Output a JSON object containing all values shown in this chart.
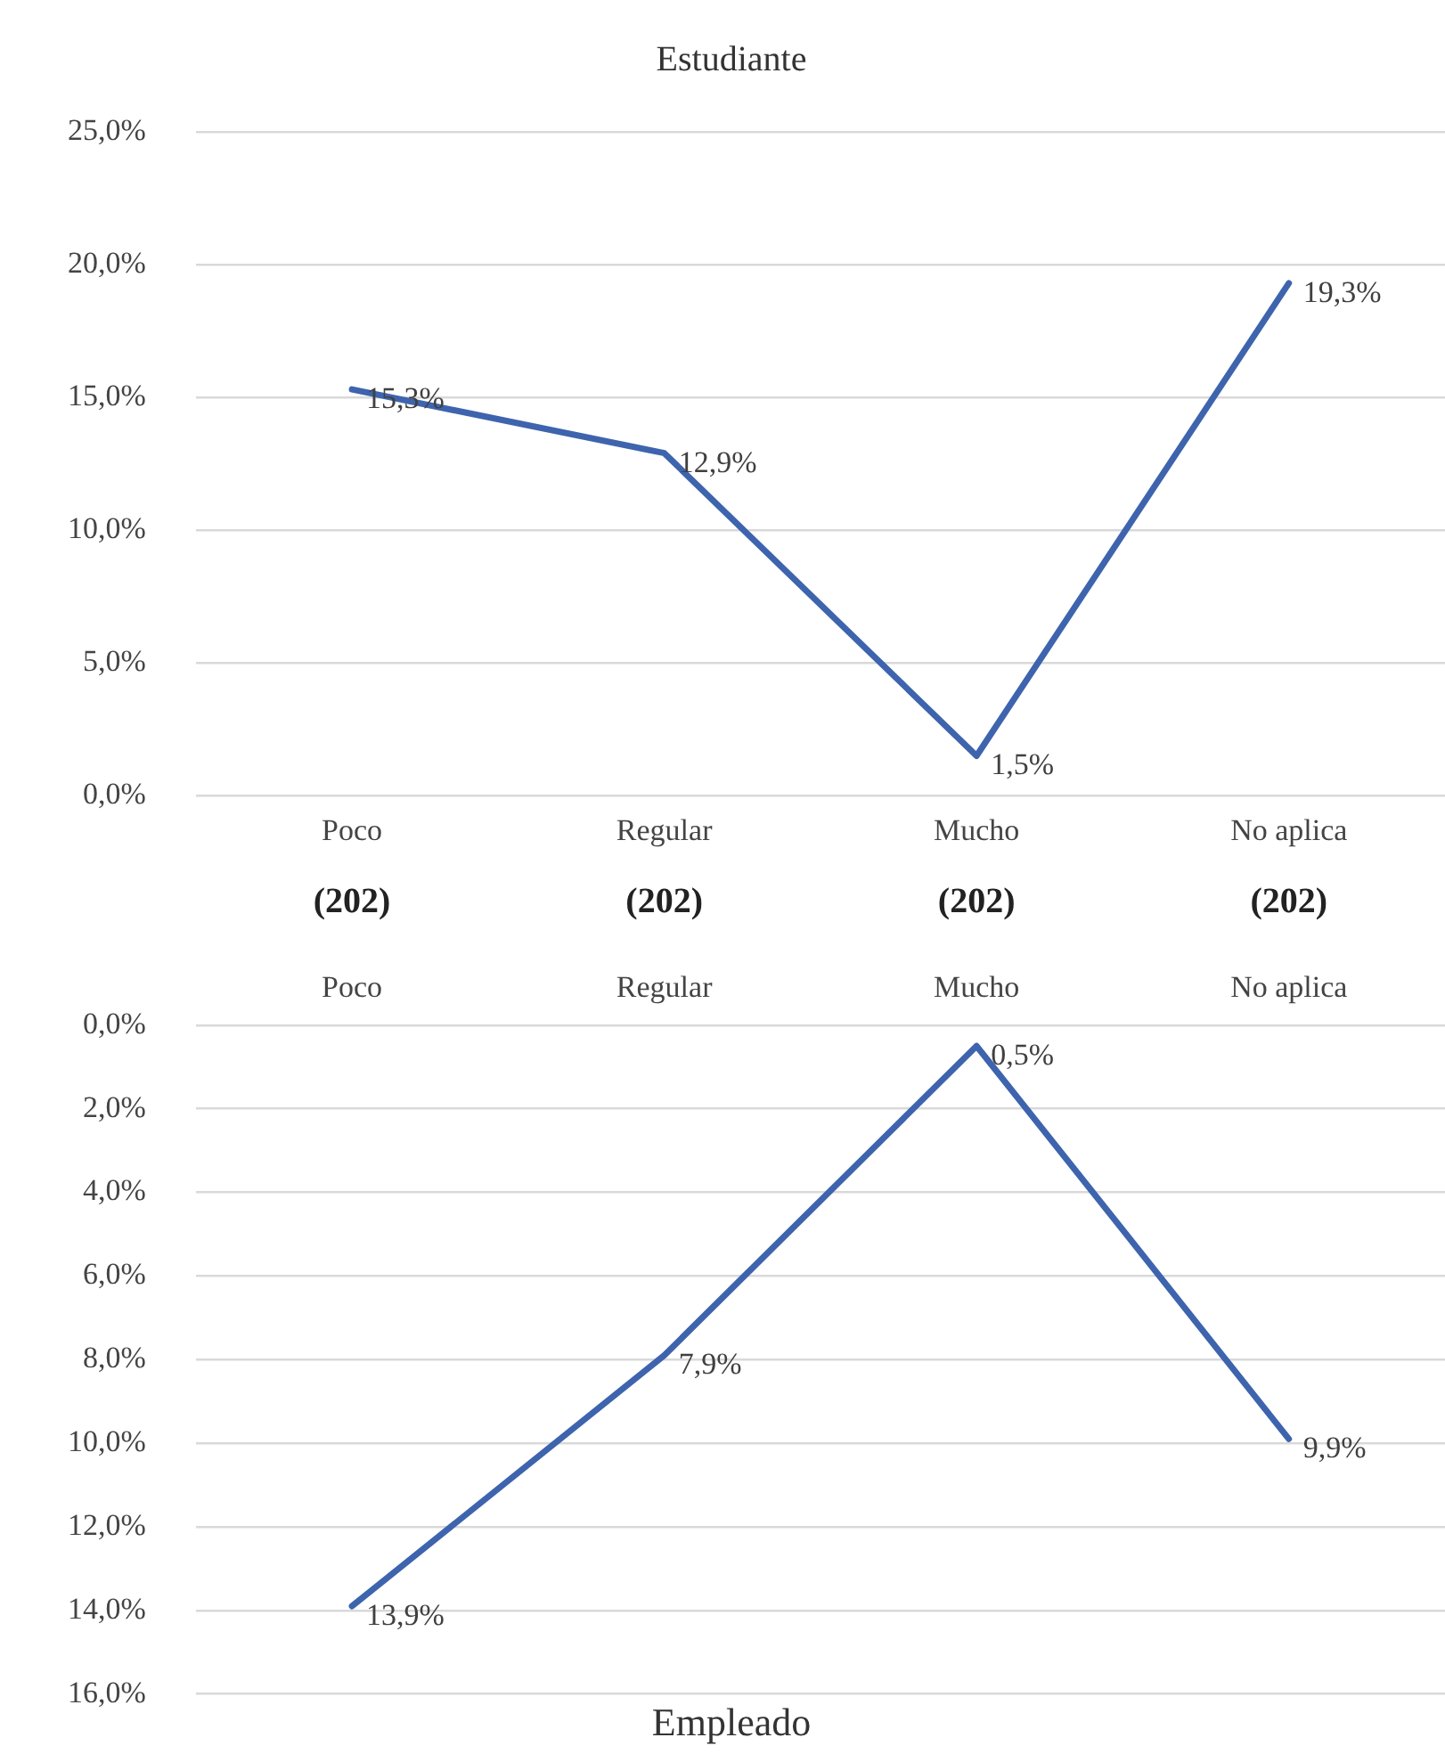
{
  "chart_data": [
    {
      "type": "line",
      "title": "Estudiante",
      "categories": [
        "Poco",
        "Regular",
        "Mucho",
        "No aplica"
      ],
      "color": "#3e64ae",
      "values": [
        15.3,
        12.9,
        1.5,
        19.3
      ],
      "value_labels": [
        "15,3%",
        "12,9%",
        "1,5%",
        "19,3%"
      ],
      "ylim": [
        0,
        25
      ],
      "yticks": [
        {
          "value": 0,
          "label": "0,0%"
        },
        {
          "value": 5,
          "label": "5,0%"
        },
        {
          "value": 10,
          "label": "10,0%"
        },
        {
          "value": 15,
          "label": "15,0%"
        },
        {
          "value": 20,
          "label": "20,0%"
        },
        {
          "value": 25,
          "label": "25,0%"
        }
      ],
      "grid": "y",
      "marker": "none",
      "line_style": "solid",
      "annotations": [
        "(202)",
        "(202)",
        "(202)",
        "(202)"
      ]
    },
    {
      "type": "line",
      "title": "Empleado",
      "categories": [
        "Poco",
        "Regular",
        "Mucho",
        "No aplica"
      ],
      "color": "#3e64ae",
      "values": [
        13.9,
        7.9,
        0.5,
        9.9
      ],
      "value_labels": [
        "13,9%",
        "7,9%",
        "0,5%",
        "9,9%"
      ],
      "ylim": [
        16,
        0
      ],
      "yticks": [
        {
          "value": 0,
          "label": "0,0%"
        },
        {
          "value": 2,
          "label": "2,0%"
        },
        {
          "value": 4,
          "label": "4,0%"
        },
        {
          "value": 6,
          "label": "6,0%"
        },
        {
          "value": 8,
          "label": "8,0%"
        },
        {
          "value": 10,
          "label": "10,0%"
        },
        {
          "value": 12,
          "label": "12,0%"
        },
        {
          "value": 14,
          "label": "14,0%"
        },
        {
          "value": 16,
          "label": "16,0%"
        }
      ],
      "grid": "y",
      "marker": "none",
      "line_style": "solid"
    }
  ]
}
